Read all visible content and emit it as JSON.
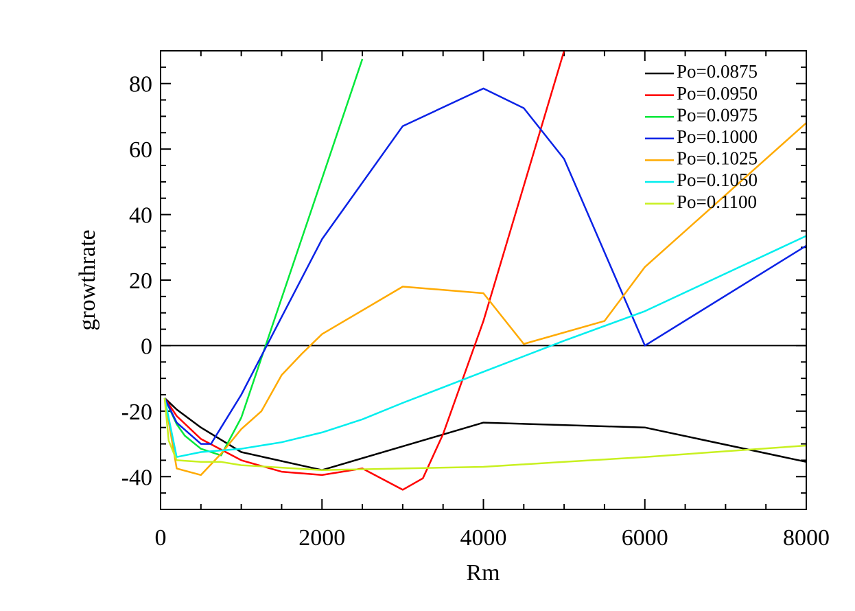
{
  "chart_data": {
    "type": "line",
    "x_label": "Rm",
    "y_label": "growthrate",
    "xlim": [
      0,
      8000
    ],
    "ylim": [
      -50,
      90
    ],
    "xticks": [
      0,
      2000,
      4000,
      6000,
      8000
    ],
    "yticks": [
      -40,
      -20,
      0,
      20,
      40,
      60,
      80
    ],
    "xminorticks": [
      500,
      1000,
      1500,
      2500,
      3000,
      3500,
      4500,
      5000,
      5500,
      6500,
      7000,
      7500
    ],
    "yminorticks": [
      -45,
      -35,
      -30,
      -25,
      -15,
      -10,
      -5,
      5,
      10,
      15,
      25,
      30,
      35,
      45,
      50,
      55,
      65,
      70,
      75,
      85
    ],
    "zero_line": true,
    "legend": "upper right",
    "series": [
      {
        "name": "Po=0.0875",
        "color": "#000000",
        "x": [
          50,
          200,
          500,
          1000,
          2000,
          4000,
          6000,
          8000
        ],
        "values": [
          -16,
          -19.5,
          -25,
          -32.5,
          -38,
          -23.5,
          -25,
          -35.5
        ]
      },
      {
        "name": "Po=0.0950",
        "color": "#ff0000",
        "x": [
          50,
          200,
          500,
          1000,
          1500,
          2000,
          2500,
          3000,
          3250,
          3500,
          4000,
          5000
        ],
        "values": [
          -16,
          -21.5,
          -28.5,
          -35,
          -38.5,
          -39.5,
          -37.5,
          -44,
          -40.5,
          -27,
          7.5,
          90
        ]
      },
      {
        "name": "Po=0.0975",
        "color": "#00e83a",
        "x": [
          50,
          200,
          300,
          500,
          750,
          1000,
          2000,
          2500
        ],
        "values": [
          -16,
          -24,
          -27.5,
          -31.5,
          -33.5,
          -22,
          51,
          87.5
        ]
      },
      {
        "name": "Po=0.1000",
        "color": "#0a22e6",
        "x": [
          50,
          200,
          500,
          625,
          750,
          1000,
          2000,
          3000,
          4000,
          4500,
          5000,
          6000,
          8000
        ],
        "values": [
          -16,
          -23.5,
          -30,
          -30,
          -25,
          -15,
          32.5,
          67,
          78.5,
          72.5,
          57,
          0,
          30.5
        ]
      },
      {
        "name": "Po=0.1025",
        "color": "#ffaa00",
        "x": [
          50,
          200,
          500,
          750,
          1000,
          1250,
          1500,
          1750,
          2000,
          3000,
          4000,
          4500,
          5500,
          6000,
          8000
        ],
        "values": [
          -16,
          -37.5,
          -39.5,
          -33,
          -25.5,
          -20,
          -9,
          -2.5,
          3.5,
          18,
          16,
          0.5,
          7.5,
          24,
          68
        ]
      },
      {
        "name": "Po=0.1050",
        "color": "#00eeee",
        "x": [
          50,
          200,
          500,
          750,
          1000,
          1500,
          2000,
          2500,
          3000,
          4000,
          5000,
          6000,
          8000
        ],
        "values": [
          -16,
          -34,
          -32.5,
          -32,
          -31.5,
          -29.5,
          -26.5,
          -22.5,
          -17.5,
          -8,
          1.5,
          10.5,
          33.5
        ]
      },
      {
        "name": "Po=0.1100",
        "color": "#c8f020",
        "x": [
          50,
          100,
          200,
          500,
          750,
          1000,
          2000,
          3000,
          4000,
          5000,
          6000,
          8000
        ],
        "values": [
          -16,
          -29,
          -35,
          -35.5,
          -35.5,
          -36.5,
          -38,
          -37.5,
          -37,
          -35.5,
          -34,
          -30.5
        ]
      }
    ]
  }
}
